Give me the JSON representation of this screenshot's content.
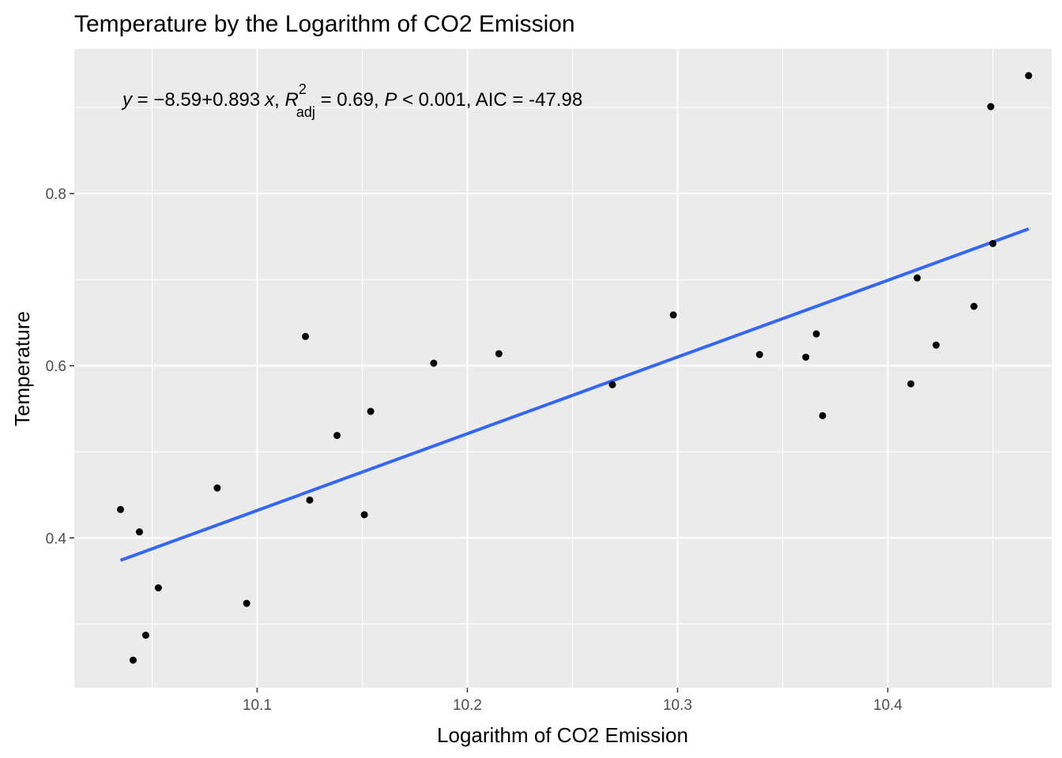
{
  "chart_data": {
    "type": "scatter",
    "title": "Temperature by the Logarithm of CO2 Emission",
    "xlabel": "Logarithm of CO2 Emission",
    "ylabel": "Temperature",
    "xlim": [
      10.013,
      10.478
    ],
    "ylim": [
      0.226,
      0.968
    ],
    "x_ticks": [
      10.1,
      10.2,
      10.3,
      10.4
    ],
    "x_tick_labels": [
      "10.1",
      "10.2",
      "10.3",
      "10.4"
    ],
    "y_ticks": [
      0.4,
      0.6,
      0.8
    ],
    "y_tick_labels": [
      "0.4",
      "0.6",
      "0.8"
    ],
    "grid": true,
    "background": "#EBEBEB",
    "point_color": "#000000",
    "line_color": "#3366FF",
    "points": [
      {
        "x": 10.035,
        "y": 0.433
      },
      {
        "x": 10.041,
        "y": 0.258
      },
      {
        "x": 10.044,
        "y": 0.407
      },
      {
        "x": 10.047,
        "y": 0.287
      },
      {
        "x": 10.053,
        "y": 0.342
      },
      {
        "x": 10.081,
        "y": 0.458
      },
      {
        "x": 10.095,
        "y": 0.324
      },
      {
        "x": 10.123,
        "y": 0.634
      },
      {
        "x": 10.125,
        "y": 0.444
      },
      {
        "x": 10.138,
        "y": 0.519
      },
      {
        "x": 10.151,
        "y": 0.427
      },
      {
        "x": 10.154,
        "y": 0.547
      },
      {
        "x": 10.184,
        "y": 0.603
      },
      {
        "x": 10.215,
        "y": 0.614
      },
      {
        "x": 10.269,
        "y": 0.578
      },
      {
        "x": 10.298,
        "y": 0.659
      },
      {
        "x": 10.339,
        "y": 0.613
      },
      {
        "x": 10.361,
        "y": 0.61
      },
      {
        "x": 10.366,
        "y": 0.637
      },
      {
        "x": 10.369,
        "y": 0.542
      },
      {
        "x": 10.411,
        "y": 0.579
      },
      {
        "x": 10.414,
        "y": 0.702
      },
      {
        "x": 10.423,
        "y": 0.624
      },
      {
        "x": 10.441,
        "y": 0.669
      },
      {
        "x": 10.449,
        "y": 0.901
      },
      {
        "x": 10.45,
        "y": 0.742
      },
      {
        "x": 10.467,
        "y": 0.937
      }
    ],
    "regression_line": {
      "x": [
        10.035,
        10.467
      ],
      "y": [
        0.374,
        0.759
      ]
    },
    "annotation": {
      "y_var": "y",
      "equals": " = ",
      "intercept_sign": "−",
      "intercept": "8.59",
      "plus": "+",
      "slope": "0.893",
      "x_var": "x",
      "sep1": ", ",
      "r_symbol": "R",
      "r_sup": "2",
      "r_sub": "adj",
      "r_value": " = 0.69, ",
      "p_symbol": "P",
      "p_value": " < 0.001, AIC = -47.98"
    }
  }
}
